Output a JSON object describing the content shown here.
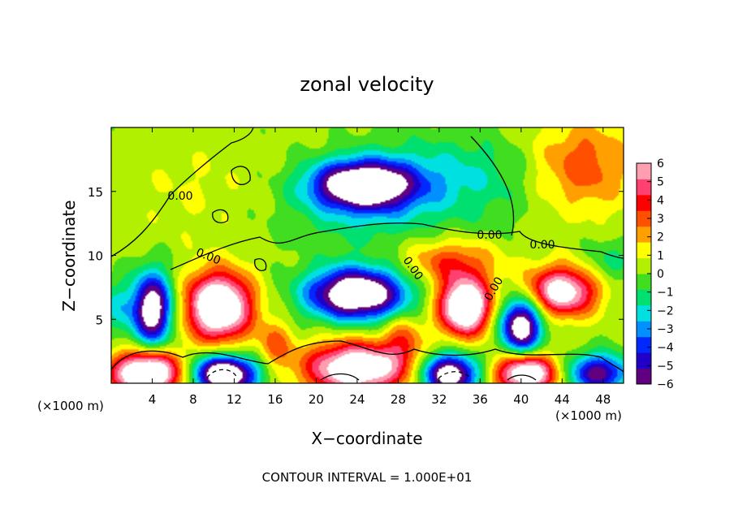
{
  "chart_data": {
    "type": "heatmap",
    "title": "zonal velocity",
    "xlabel": "X−coordinate",
    "ylabel": "Z−coordinate",
    "x_unit_left": "(×1000 m)",
    "x_unit_right": "(×1000 m)",
    "footer": "CONTOUR INTERVAL = 1.000E+01",
    "xlim": [
      0,
      50
    ],
    "ylim": [
      0,
      20
    ],
    "x_ticks": [
      4,
      8,
      12,
      16,
      20,
      24,
      28,
      32,
      36,
      40,
      44,
      48
    ],
    "y_ticks": [
      5,
      10,
      15
    ],
    "colorbar": {
      "range": [
        -6,
        6
      ],
      "tick_labels": [
        "6",
        "5",
        "4",
        "3",
        "2",
        "1",
        "0",
        "−1",
        "−2",
        "−3",
        "−4",
        "−5",
        "−6"
      ],
      "colors": [
        "#600080",
        "#2000c8",
        "#0028ff",
        "#0090ff",
        "#00e0e0",
        "#00e070",
        "#40dd20",
        "#b0f000",
        "#ffff00",
        "#ffa000",
        "#ff5000",
        "#ff0000",
        "#ff4070",
        "#ff9eb0"
      ]
    },
    "contour_labels": [
      "0.00",
      "0.00",
      "0.00",
      "0.00",
      "0.00",
      "0.00"
    ],
    "features": [
      {
        "x": 24.5,
        "z": 15.5,
        "sx": 5.0,
        "sz": 1.9,
        "value": -9
      },
      {
        "x": 33.0,
        "z": 16.0,
        "sx": 8.5,
        "sz": 3.5,
        "value": -2.2
      },
      {
        "x": 24.0,
        "z": 12.5,
        "sx": 8.0,
        "sz": 2.5,
        "value": -1.2
      },
      {
        "x": 46.0,
        "z": 17.0,
        "sx": 5.0,
        "sz": 3.5,
        "value": 3.0
      },
      {
        "x": 33.0,
        "z": 9.5,
        "sx": 4.5,
        "sz": 1.8,
        "value": 3.0
      },
      {
        "x": 24.0,
        "z": 7.0,
        "sx": 4.8,
        "sz": 2.0,
        "value": -9
      },
      {
        "x": 10.5,
        "z": 6.0,
        "sx": 3.2,
        "sz": 2.6,
        "value": 9
      },
      {
        "x": 34.5,
        "z": 6.0,
        "sx": 2.5,
        "sz": 2.2,
        "value": 9
      },
      {
        "x": 44.0,
        "z": 7.2,
        "sx": 3.4,
        "sz": 1.9,
        "value": 7
      },
      {
        "x": 4.0,
        "z": 5.8,
        "sx": 2.0,
        "sz": 2.8,
        "value": -8
      },
      {
        "x": 40.0,
        "z": 4.5,
        "sx": 2.0,
        "sz": 2.2,
        "value": -8
      },
      {
        "x": 3.5,
        "z": 0.8,
        "sx": 3.5,
        "sz": 1.7,
        "value": 9
      },
      {
        "x": 11.0,
        "z": 0.7,
        "sx": 3.2,
        "sz": 1.5,
        "value": -9
      },
      {
        "x": 24.0,
        "z": 1.2,
        "sx": 5.0,
        "sz": 2.0,
        "value": 8
      },
      {
        "x": 33.0,
        "z": 0.7,
        "sx": 2.8,
        "sz": 1.6,
        "value": -8
      },
      {
        "x": 40.5,
        "z": 0.8,
        "sx": 3.0,
        "sz": 1.5,
        "value": 8
      },
      {
        "x": 47.5,
        "z": 0.8,
        "sx": 3.0,
        "sz": 1.5,
        "value": -6
      },
      {
        "x": 16.0,
        "z": 3.0,
        "sx": 1.6,
        "sz": 1.8,
        "value": 2.5
      },
      {
        "x": 28.5,
        "z": 3.5,
        "sx": 1.8,
        "sz": 2.0,
        "value": 2.5
      },
      {
        "x": 8.0,
        "z": 15.0,
        "sx": 6.0,
        "sz": 4.0,
        "value": 0.6
      },
      {
        "x": 48.5,
        "z": 9.5,
        "sx": 2.5,
        "sz": 1.8,
        "value": -1.5
      },
      {
        "x": 0.5,
        "z": 6.0,
        "sx": 1.5,
        "sz": 2.0,
        "value": -2.0
      }
    ]
  }
}
